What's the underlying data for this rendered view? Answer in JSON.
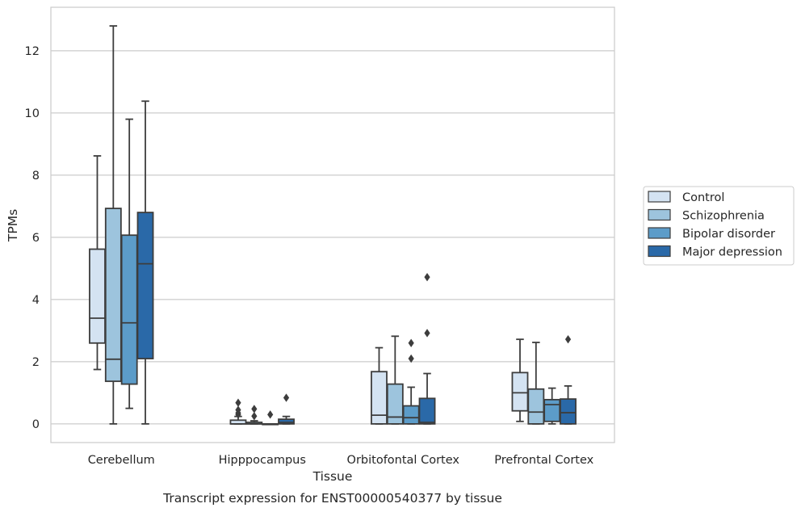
{
  "chart_data": {
    "type": "box",
    "title": "",
    "caption": "Transcript expression for ENST00000540377 by tissue",
    "xlabel": "Tissue",
    "ylabel": "TPMs",
    "ylim": [
      -0.6,
      13.4
    ],
    "yticks": [
      0,
      2,
      4,
      6,
      8,
      10,
      12
    ],
    "grid": "horizontal",
    "legend_position": "right",
    "categories": [
      "Cerebellum",
      "Hipppocampus",
      "Orbitofontal Cortex",
      "Prefrontal Cortex"
    ],
    "series": [
      {
        "name": "Control",
        "color": "#d4e3f2",
        "boxes": [
          {
            "whislo": 1.75,
            "q1": 2.6,
            "med": 3.4,
            "q3": 5.62,
            "whishi": 8.62,
            "fliers": []
          },
          {
            "whislo": 0.0,
            "q1": 0.0,
            "med": 0.0,
            "q3": 0.12,
            "whishi": 0.24,
            "fliers": [
              0.3,
              0.35,
              0.45,
              0.68
            ]
          },
          {
            "whislo": 0.0,
            "q1": 0.0,
            "med": 0.28,
            "q3": 1.68,
            "whishi": 2.45,
            "fliers": []
          },
          {
            "whislo": 0.08,
            "q1": 0.42,
            "med": 1.0,
            "q3": 1.65,
            "whishi": 2.72,
            "fliers": []
          }
        ]
      },
      {
        "name": "Schizophrenia",
        "color": "#9dc4dd",
        "boxes": [
          {
            "whislo": 0.0,
            "q1": 1.37,
            "med": 2.08,
            "q3": 6.93,
            "whishi": 12.8,
            "fliers": []
          },
          {
            "whislo": 0.0,
            "q1": 0.0,
            "med": 0.0,
            "q3": 0.05,
            "whishi": 0.1,
            "fliers": [
              0.25,
              0.48
            ]
          },
          {
            "whislo": 0.0,
            "q1": 0.0,
            "med": 0.22,
            "q3": 1.28,
            "whishi": 2.82,
            "fliers": []
          },
          {
            "whislo": 0.0,
            "q1": 0.0,
            "med": 0.38,
            "q3": 1.12,
            "whishi": 2.62,
            "fliers": []
          }
        ]
      },
      {
        "name": "Bipolar disorder",
        "color": "#5c9cc9",
        "boxes": [
          {
            "whislo": 0.5,
            "q1": 1.28,
            "med": 3.25,
            "q3": 6.07,
            "whishi": 9.8,
            "fliers": []
          },
          {
            "whislo": 0.0,
            "q1": 0.0,
            "med": 0.0,
            "q3": 0.0,
            "whishi": 0.0,
            "fliers": [
              0.3
            ]
          },
          {
            "whislo": 0.0,
            "q1": 0.0,
            "med": 0.2,
            "q3": 0.58,
            "whishi": 1.18,
            "fliers": [
              2.1,
              2.6
            ]
          },
          {
            "whislo": 0.0,
            "q1": 0.08,
            "med": 0.62,
            "q3": 0.78,
            "whishi": 1.15,
            "fliers": []
          }
        ]
      },
      {
        "name": "Major depression",
        "color": "#2a69a8",
        "boxes": [
          {
            "whislo": 0.0,
            "q1": 2.1,
            "med": 5.15,
            "q3": 6.8,
            "whishi": 10.38,
            "fliers": []
          },
          {
            "whislo": 0.0,
            "q1": 0.0,
            "med": 0.05,
            "q3": 0.15,
            "whishi": 0.24,
            "fliers": [
              0.84
            ]
          },
          {
            "whislo": 0.0,
            "q1": 0.0,
            "med": 0.05,
            "q3": 0.82,
            "whishi": 1.62,
            "fliers": [
              2.92,
              4.72
            ]
          },
          {
            "whislo": 0.0,
            "q1": 0.0,
            "med": 0.36,
            "q3": 0.8,
            "whishi": 1.22,
            "fliers": [
              2.72
            ]
          }
        ]
      }
    ]
  }
}
